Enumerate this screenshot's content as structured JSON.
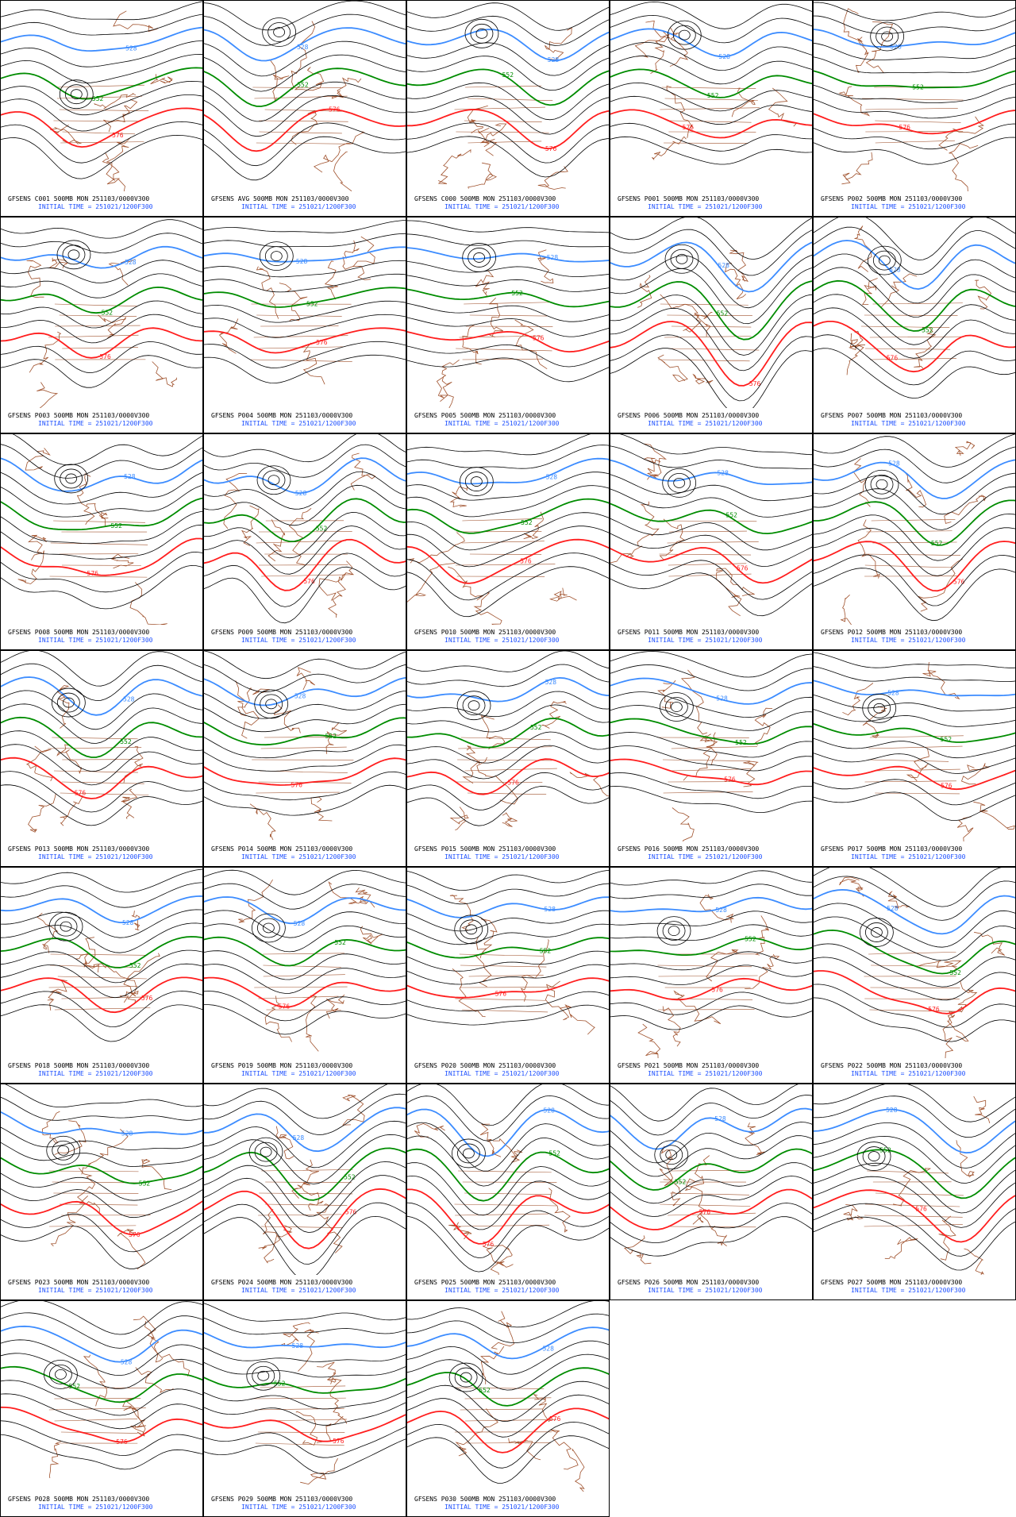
{
  "contours": [
    {
      "label": "528",
      "color": "#3c8cff"
    },
    {
      "label": "552",
      "color": "#008c00"
    },
    {
      "label": "576",
      "color": "#ff1e1e"
    }
  ],
  "panels": [
    {
      "line1": "GFSENS C001 500MB MON 251103/0000V300",
      "line2": "INITIAL TIME = 251021/1200F300"
    },
    {
      "line1": "GFSENS AVG 500MB MON 251103/0000V300",
      "line2": "INITIAL TIME = 251021/1200F300"
    },
    {
      "line1": "GFSENS C000 500MB MON 251103/0000V300",
      "line2": "INITIAL TIME = 251021/1200F300"
    },
    {
      "line1": "GFSENS P001 500MB MON 251103/0000V300",
      "line2": "INITIAL TIME = 251021/1200F300"
    },
    {
      "line1": "GFSENS P002 500MB MON 251103/0000V300",
      "line2": "INITIAL TIME = 251021/1200F300"
    },
    {
      "line1": "GFSENS P003 500MB MON 251103/0000V300",
      "line2": "INITIAL TIME = 251021/1200F300"
    },
    {
      "line1": "GFSENS P004 500MB MON 251103/0000V300",
      "line2": "INITIAL TIME = 251021/1200F300"
    },
    {
      "line1": "GFSENS P005 500MB MON 251103/0000V300",
      "line2": "INITIAL TIME = 251021/1200F300"
    },
    {
      "line1": "GFSENS P006 500MB MON 251103/0000V300",
      "line2": "INITIAL TIME = 251021/1200F300"
    },
    {
      "line1": "GFSENS P007 500MB MON 251103/0000V300",
      "line2": "INITIAL TIME = 251021/1200F300"
    },
    {
      "line1": "GFSENS P008 500MB MON 251103/0000V300",
      "line2": "INITIAL TIME = 251021/1200F300"
    },
    {
      "line1": "GFSENS P009 500MB MON 251103/0000V300",
      "line2": "INITIAL TIME = 251021/1200F300"
    },
    {
      "line1": "GFSENS P010 500MB MON 251103/0000V300",
      "line2": "INITIAL TIME = 251021/1200F300"
    },
    {
      "line1": "GFSENS P011 500MB MON 251103/0000V300",
      "line2": "INITIAL TIME = 251021/1200F300"
    },
    {
      "line1": "GFSENS P012 500MB MON 251103/0000V300",
      "line2": "INITIAL TIME = 251021/1200F300"
    },
    {
      "line1": "GFSENS P013 500MB MON 251103/0000V300",
      "line2": "INITIAL TIME = 251021/1200F300"
    },
    {
      "line1": "GFSENS P014 500MB MON 251103/0000V300",
      "line2": "INITIAL TIME = 251021/1200F300"
    },
    {
      "line1": "GFSENS P015 500MB MON 251103/0000V300",
      "line2": "INITIAL TIME = 251021/1200F300"
    },
    {
      "line1": "GFSENS P016 500MB MON 251103/0000V300",
      "line2": "INITIAL TIME = 251021/1200F300"
    },
    {
      "line1": "GFSENS P017 500MB MON 251103/0000V300",
      "line2": "INITIAL TIME = 251021/1200F300"
    },
    {
      "line1": "GFSENS P018 500MB MON 251103/0000V300",
      "line2": "INITIAL TIME = 251021/1200F300"
    },
    {
      "line1": "GFSENS P019 500MB MON 251103/0000V300",
      "line2": "INITIAL TIME = 251021/1200F300"
    },
    {
      "line1": "GFSENS P020 500MB MON 251103/0000V300",
      "line2": "INITIAL TIME = 251021/1200F300"
    },
    {
      "line1": "GFSENS P021 500MB MON 251103/0000V300",
      "line2": "INITIAL TIME = 251021/1200F300"
    },
    {
      "line1": "GFSENS P022 500MB MON 251103/0000V300",
      "line2": "INITIAL TIME = 251021/1200F300"
    },
    {
      "line1": "GFSENS P023 500MB MON 251103/0000V300",
      "line2": "INITIAL TIME = 251021/1200F300"
    },
    {
      "line1": "GFSENS P024 500MB MON 251103/0000V300",
      "line2": "INITIAL TIME = 251021/1200F300"
    },
    {
      "line1": "GFSENS P025 500MB MON 251103/0000V300",
      "line2": "INITIAL TIME = 251021/1200F300"
    },
    {
      "line1": "GFSENS P026 500MB MON 251103/0000V300",
      "line2": "INITIAL TIME = 251021/1200F300"
    },
    {
      "line1": "GFSENS P027 500MB MON 251103/0000V300",
      "line2": "INITIAL TIME = 251021/1200F300"
    },
    {
      "line1": "GFSENS P028 500MB MON 251103/0000V300",
      "line2": "INITIAL TIME = 251021/1200F300"
    },
    {
      "line1": "GFSENS P029 500MB MON 251103/0000V300",
      "line2": "INITIAL TIME = 251021/1200F300"
    },
    {
      "line1": "GFSENS P030 500MB MON 251103/0000V300",
      "line2": "INITIAL TIME = 251021/1200F300"
    }
  ]
}
